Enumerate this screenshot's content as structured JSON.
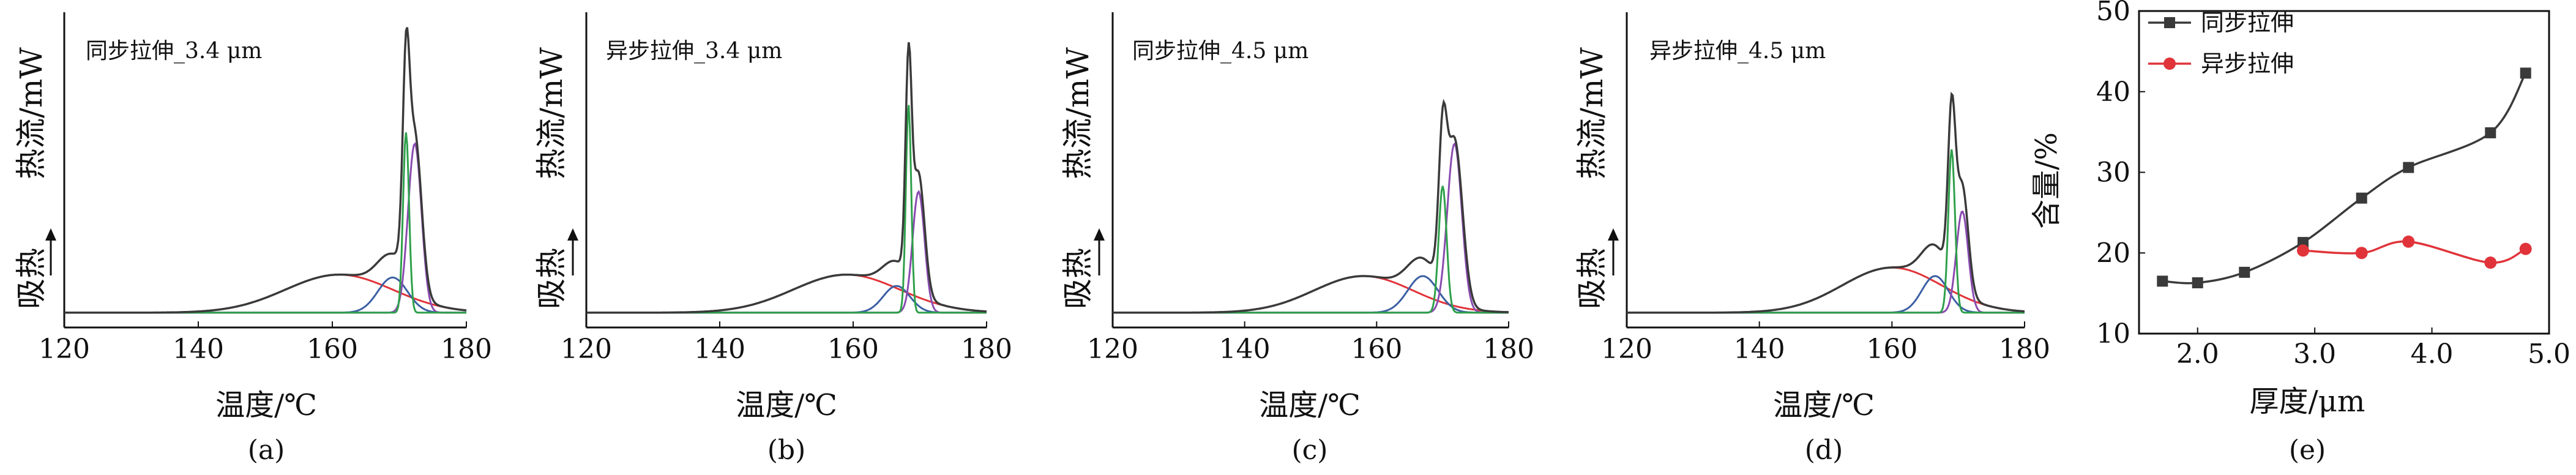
{
  "colors": {
    "total": "#3a3a3a",
    "red": "#e0343a",
    "blue": "#3c5fa3",
    "green": "#2ea04a",
    "purple": "#8a4bb0",
    "sync": "#3a3a3a",
    "async": "#e0343a"
  },
  "chart_data": [
    {
      "panel": "(a)",
      "type": "line",
      "label": "同步拉伸_3.4 μm",
      "xlabel": "温度/℃",
      "ylabel_top": "热流/mW",
      "ylabel_bottom": "吸热",
      "xlim": [
        120,
        180
      ],
      "xticks": [
        120,
        140,
        160,
        180
      ],
      "baseline": 0.02,
      "series": [
        {
          "name": "",
          "color_key": "red",
          "peaks": [
            [
              161,
              0.135,
              8.0
            ]
          ]
        },
        {
          "name": "",
          "color_key": "blue",
          "peaks": [
            [
              169.0,
              0.125,
              2.2
            ]
          ]
        },
        {
          "name": "",
          "color_key": "green",
          "peaks": [
            [
              171.0,
              0.64,
              0.45
            ]
          ]
        },
        {
          "name": "",
          "color_key": "purple",
          "peaks": [
            [
              172.3,
              0.6,
              1.0
            ]
          ]
        }
      ],
      "total_peaks": [
        [
          161,
          0.135,
          8.0
        ],
        [
          169.0,
          0.125,
          2.2
        ],
        [
          171.0,
          0.62,
          0.5
        ],
        [
          172.3,
          0.55,
          1.0
        ]
      ]
    },
    {
      "panel": "(b)",
      "type": "line",
      "label": "异步拉伸_3.4 μm",
      "xlabel": "温度/℃",
      "ylabel_top": "热流/mW",
      "ylabel_bottom": "吸热",
      "xlim": [
        120,
        180
      ],
      "xticks": [
        120,
        140,
        160,
        180
      ],
      "baseline": 0.02,
      "series": [
        {
          "name": "",
          "color_key": "red",
          "peaks": [
            [
              159,
              0.135,
              8.0
            ]
          ]
        },
        {
          "name": "",
          "color_key": "blue",
          "peaks": [
            [
              166.5,
              0.095,
              2.0
            ]
          ]
        },
        {
          "name": "",
          "color_key": "green",
          "peaks": [
            [
              168.3,
              0.74,
              0.4
            ]
          ]
        },
        {
          "name": "",
          "color_key": "purple",
          "peaks": [
            [
              169.8,
              0.43,
              0.9
            ]
          ]
        }
      ],
      "total_peaks": [
        [
          159,
          0.135,
          8.0
        ],
        [
          166.5,
          0.095,
          2.0
        ],
        [
          168.3,
          0.72,
          0.45
        ],
        [
          169.8,
          0.42,
          0.9
        ]
      ]
    },
    {
      "panel": "(c)",
      "type": "line",
      "label": "同步拉伸_4.5 μm",
      "xlabel": "温度/℃",
      "ylabel_top": "热流/mW",
      "ylabel_bottom": "吸热",
      "xlim": [
        120,
        180
      ],
      "xticks": [
        120,
        140,
        160,
        180
      ],
      "baseline": 0.02,
      "series": [
        {
          "name": "",
          "color_key": "red",
          "peaks": [
            [
              158,
              0.13,
              7.5
            ]
          ]
        },
        {
          "name": "",
          "color_key": "blue",
          "peaks": [
            [
              167.0,
              0.13,
              2.3
            ]
          ]
        },
        {
          "name": "",
          "color_key": "green",
          "peaks": [
            [
              170.0,
              0.45,
              0.6
            ]
          ]
        },
        {
          "name": "",
          "color_key": "purple",
          "peaks": [
            [
              171.8,
              0.6,
              1.1
            ]
          ]
        }
      ],
      "total_peaks": [
        [
          158,
          0.13,
          7.5
        ],
        [
          167.0,
          0.13,
          2.3
        ],
        [
          170.0,
          0.45,
          0.6
        ],
        [
          171.8,
          0.58,
          1.2
        ]
      ]
    },
    {
      "panel": "(d)",
      "type": "line",
      "label": "异步拉伸_4.5 μm",
      "xlabel": "温度/℃",
      "ylabel_top": "热流/mW",
      "ylabel_bottom": "吸热",
      "xlim": [
        120,
        180
      ],
      "xticks": [
        120,
        140,
        160,
        180
      ],
      "baseline": 0.02,
      "series": [
        {
          "name": "",
          "color_key": "red",
          "peaks": [
            [
              160,
              0.16,
              7.5
            ]
          ]
        },
        {
          "name": "",
          "color_key": "blue",
          "peaks": [
            [
              166.5,
              0.13,
              2.0
            ]
          ]
        },
        {
          "name": "",
          "color_key": "green",
          "peaks": [
            [
              169.0,
              0.58,
              0.5
            ]
          ]
        },
        {
          "name": "",
          "color_key": "purple",
          "peaks": [
            [
              170.6,
              0.36,
              0.9
            ]
          ]
        }
      ],
      "total_peaks": [
        [
          160,
          0.16,
          7.5
        ],
        [
          166.5,
          0.13,
          2.0
        ],
        [
          169.0,
          0.56,
          0.55
        ],
        [
          170.6,
          0.38,
          0.9
        ]
      ]
    },
    {
      "panel": "(e)",
      "type": "line",
      "xlabel": "厚度/μm",
      "ylabel": "含量/%",
      "xlim": [
        1.5,
        5.0
      ],
      "ylim": [
        10,
        50
      ],
      "xticks": [
        "2.0",
        "3.0",
        "4.0",
        "5.0"
      ],
      "yticks": [
        "10",
        "20",
        "30",
        "40",
        "50"
      ],
      "legend_position": "top-left",
      "series": [
        {
          "name": "同步拉伸",
          "color_key": "sync",
          "marker": "square",
          "x": [
            1.7,
            2.0,
            2.4,
            2.9,
            3.4,
            3.8,
            4.5,
            4.8
          ],
          "y": [
            16.5,
            16.3,
            17.6,
            21.3,
            26.8,
            30.6,
            34.9,
            42.3
          ]
        },
        {
          "name": "异步拉伸",
          "color_key": "async",
          "marker": "circle",
          "x": [
            2.9,
            3.4,
            3.8,
            4.5,
            4.8
          ],
          "y": [
            20.3,
            20.0,
            21.4,
            18.8,
            20.5
          ]
        }
      ]
    }
  ]
}
